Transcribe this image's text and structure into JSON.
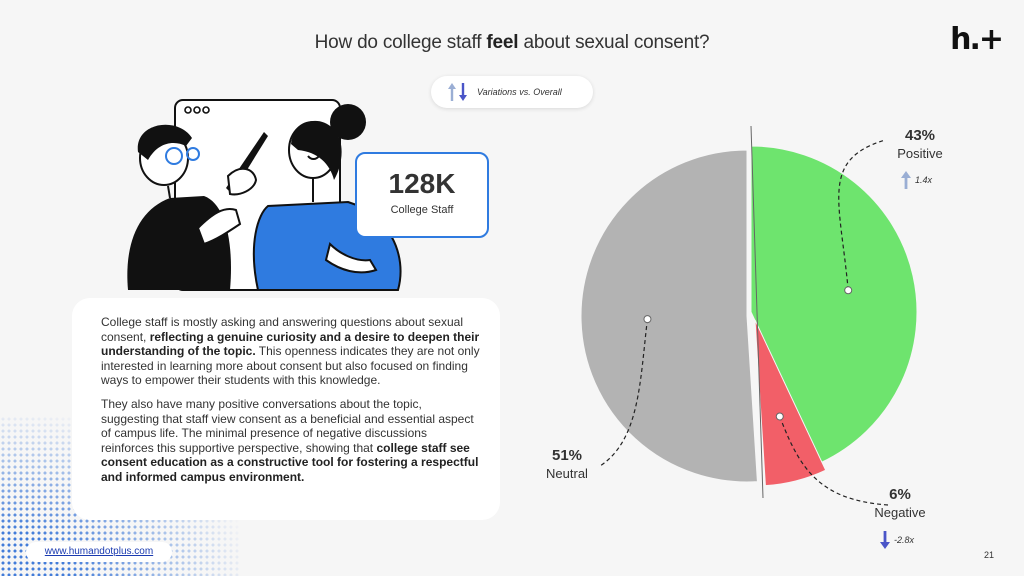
{
  "title": {
    "prefix": "How do college staff ",
    "emphasis": "feel",
    "suffix": " about sexual consent?"
  },
  "logo": "h.+",
  "variation_pill": {
    "label": "Variations vs. Overall",
    "icon": "up-down-arrows-icon"
  },
  "stat": {
    "value": "128K",
    "label": "College Staff"
  },
  "body": {
    "p1": [
      {
        "text": "College staff is mostly asking and answering questions about sexual consent, ",
        "bold": false
      },
      {
        "text": "reflecting a genuine curiosity and a desire to deepen their understanding of the topic.",
        "bold": true
      },
      {
        "text": " This openness indicates they are not only interested in learning more about consent but also focused on finding ways to empower their students with this knowledge.",
        "bold": false
      }
    ],
    "p2": [
      {
        "text": "They also have many positive conversations about the topic, suggesting that staff view consent as a beneficial and essential aspect of campus life. The minimal presence of negative discussions reinforces this supportive perspective, showing that ",
        "bold": false
      },
      {
        "text": "college staff see consent education as a constructive tool for fostering a respectful and informed campus environment.",
        "bold": true
      }
    ]
  },
  "footer": {
    "url": "www.humandotplus.com",
    "page": "21"
  },
  "colors": {
    "positive": "#6ee46e",
    "negative": "#f25f68",
    "neutral": "#b3b3b3",
    "accent_blue": "#2f7be0",
    "arrow_up": "#9aaed4",
    "arrow_down": "#4a55c8"
  },
  "chart_data": {
    "type": "pie",
    "title": "",
    "slices": [
      {
        "label": "Positive",
        "value": 43,
        "value_label": "43%",
        "variation": "1.4x",
        "direction": "up",
        "color": "#6ee46e"
      },
      {
        "label": "Negative",
        "value": 6,
        "value_label": "6%",
        "variation": "-2.8x",
        "direction": "down",
        "color": "#f25f68"
      },
      {
        "label": "Neutral",
        "value": 51,
        "value_label": "51%",
        "variation": "",
        "direction": "",
        "color": "#b3b3b3"
      }
    ],
    "legend": "none"
  }
}
